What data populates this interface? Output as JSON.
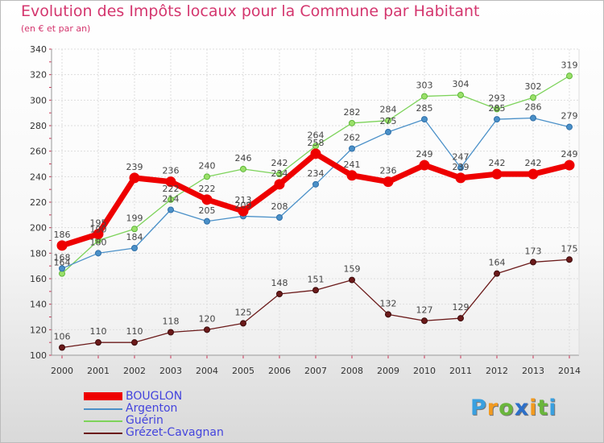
{
  "title": "Evolution des Impôts locaux pour la Commune par Habitant",
  "subtitle": "(en € et par an)",
  "logo_letters": [
    "P",
    "r",
    "o",
    "x",
    "i",
    "t",
    "i"
  ],
  "logo_colors": [
    "#3aa0e0",
    "#f29a1f",
    "#6ab63c",
    "#2c6fc9",
    "#f29a1f",
    "#6ab63c",
    "#3aa0e0"
  ],
  "chart_data": {
    "type": "line",
    "title": "Evolution des Impôts locaux pour la Commune par Habitant",
    "subtitle": "(en € et par an)",
    "xlabel": "",
    "ylabel": "",
    "x": [
      "2000",
      "2001",
      "2002",
      "2003",
      "2004",
      "2005",
      "2006",
      "2007",
      "2008",
      "2009",
      "2010",
      "2011",
      "2012",
      "2013",
      "2014"
    ],
    "ylim": [
      100,
      340
    ],
    "yticks": [
      100,
      120,
      140,
      160,
      180,
      200,
      220,
      240,
      260,
      280,
      300,
      320,
      340
    ],
    "grid": true,
    "legend_position": "bottom-left",
    "series": [
      {
        "name": "BOUGLON",
        "color": "#ee0000",
        "values": [
          186,
          195,
          239,
          236,
          222,
          213,
          234,
          258,
          241,
          236,
          249,
          239,
          242,
          242,
          249
        ]
      },
      {
        "name": "Argenton",
        "color": "#4a90c8",
        "values": [
          168,
          180,
          184,
          214,
          205,
          209,
          208,
          234,
          262,
          275,
          285,
          247,
          285,
          286,
          279
        ]
      },
      {
        "name": "Guérin",
        "color": "#7dd35a",
        "values": [
          164,
          190,
          199,
          222,
          240,
          246,
          242,
          264,
          282,
          284,
          303,
          304,
          293,
          302,
          319
        ]
      },
      {
        "name": "Grézet-Cavagnan",
        "color": "#6b1a1a",
        "values": [
          106,
          110,
          110,
          118,
          120,
          125,
          148,
          151,
          159,
          132,
          127,
          129,
          164,
          173,
          175
        ]
      }
    ]
  }
}
